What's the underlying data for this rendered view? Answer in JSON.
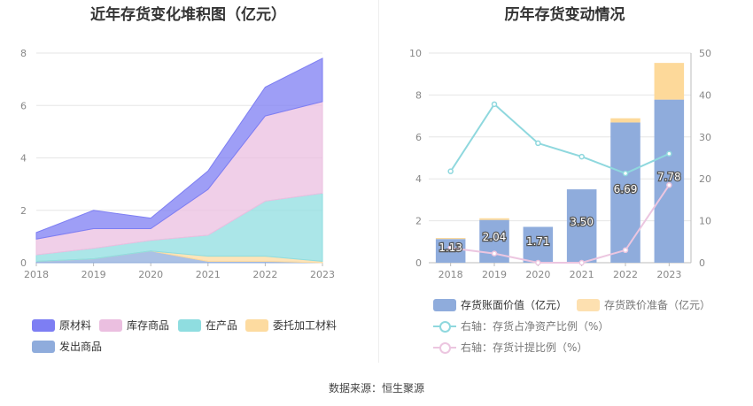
{
  "left_chart": {
    "title": "近年存货变化堆积图（亿元）",
    "y_ticks": [
      "0",
      "2",
      "4",
      "6",
      "8"
    ],
    "x_ticks": [
      "2018",
      "2019",
      "2020",
      "2021",
      "2022",
      "2023"
    ],
    "legend": [
      {
        "name": "原材料",
        "color": "#7d7ef3"
      },
      {
        "name": "库存商品",
        "color": "#ebbfe0"
      },
      {
        "name": "在产品",
        "color": "#8fdde0"
      },
      {
        "name": "委托加工材料",
        "color": "#fddba0"
      },
      {
        "name": "发出商品",
        "color": "#8facdc"
      }
    ]
  },
  "right_chart": {
    "title": "历年存货变动情况",
    "y_left_ticks": [
      "0",
      "2",
      "4",
      "6",
      "8",
      "10"
    ],
    "y_right_ticks": [
      "0",
      "10",
      "20",
      "30",
      "40",
      "50"
    ],
    "x_ticks": [
      "2018",
      "2019",
      "2020",
      "2021",
      "2022",
      "2023"
    ],
    "bar_labels": [
      "1.13",
      "2.04",
      "1.71",
      "3.50",
      "6.69",
      "7.78"
    ],
    "legend": [
      {
        "name": "存货账面价值（亿元）",
        "color": "#8facdc"
      },
      {
        "name": "存货跌价准备（亿元）",
        "color": "#fde0b0"
      },
      {
        "name": "右轴：存货占净资产比例（%）",
        "color": "#8fd8de"
      },
      {
        "name": "右轴：存货计提比例（%）",
        "color": "#ecc6e0"
      }
    ]
  },
  "source": "数据来源：恒生聚源",
  "chart_data": [
    {
      "type": "area",
      "title": "近年存货变化堆积图（亿元）",
      "categories": [
        "2018",
        "2019",
        "2020",
        "2021",
        "2022",
        "2023"
      ],
      "stacked": true,
      "ylim": [
        0,
        8
      ],
      "series": [
        {
          "name": "发出商品",
          "values": [
            0.05,
            0.15,
            0.45,
            0.05,
            0.05,
            0.0
          ]
        },
        {
          "name": "委托加工材料",
          "values": [
            0.0,
            0.0,
            0.0,
            0.2,
            0.2,
            0.05
          ]
        },
        {
          "name": "在产品",
          "values": [
            0.25,
            0.4,
            0.4,
            0.8,
            2.1,
            2.6
          ]
        },
        {
          "name": "库存商品",
          "values": [
            0.6,
            0.75,
            0.45,
            1.75,
            3.25,
            3.5
          ]
        },
        {
          "name": "原材料",
          "values": [
            0.25,
            0.7,
            0.4,
            0.7,
            1.1,
            1.65
          ]
        }
      ],
      "legend_position": "bottom"
    },
    {
      "type": "bar",
      "title": "历年存货变动情况",
      "categories": [
        "2018",
        "2019",
        "2020",
        "2021",
        "2022",
        "2023"
      ],
      "stacked": true,
      "ylim": [
        0,
        10
      ],
      "y2lim": [
        0,
        50
      ],
      "series": [
        {
          "name": "存货账面价值（亿元）",
          "type": "bar",
          "axis": "left",
          "values": [
            1.13,
            2.04,
            1.71,
            3.5,
            6.69,
            7.78
          ]
        },
        {
          "name": "存货跌价准备（亿元）",
          "type": "bar",
          "axis": "left",
          "values": [
            0.05,
            0.08,
            0.0,
            0.0,
            0.2,
            1.75
          ]
        },
        {
          "name": "右轴：存货占净资产比例（%）",
          "type": "line",
          "axis": "right",
          "values": [
            21.8,
            37.8,
            28.5,
            25.3,
            21.3,
            26.0
          ]
        },
        {
          "name": "右轴：存货计提比例（%）",
          "type": "line",
          "axis": "right",
          "values": [
            3.5,
            2.2,
            0.0,
            0.0,
            3.0,
            18.5
          ]
        }
      ],
      "legend_position": "bottom"
    }
  ]
}
